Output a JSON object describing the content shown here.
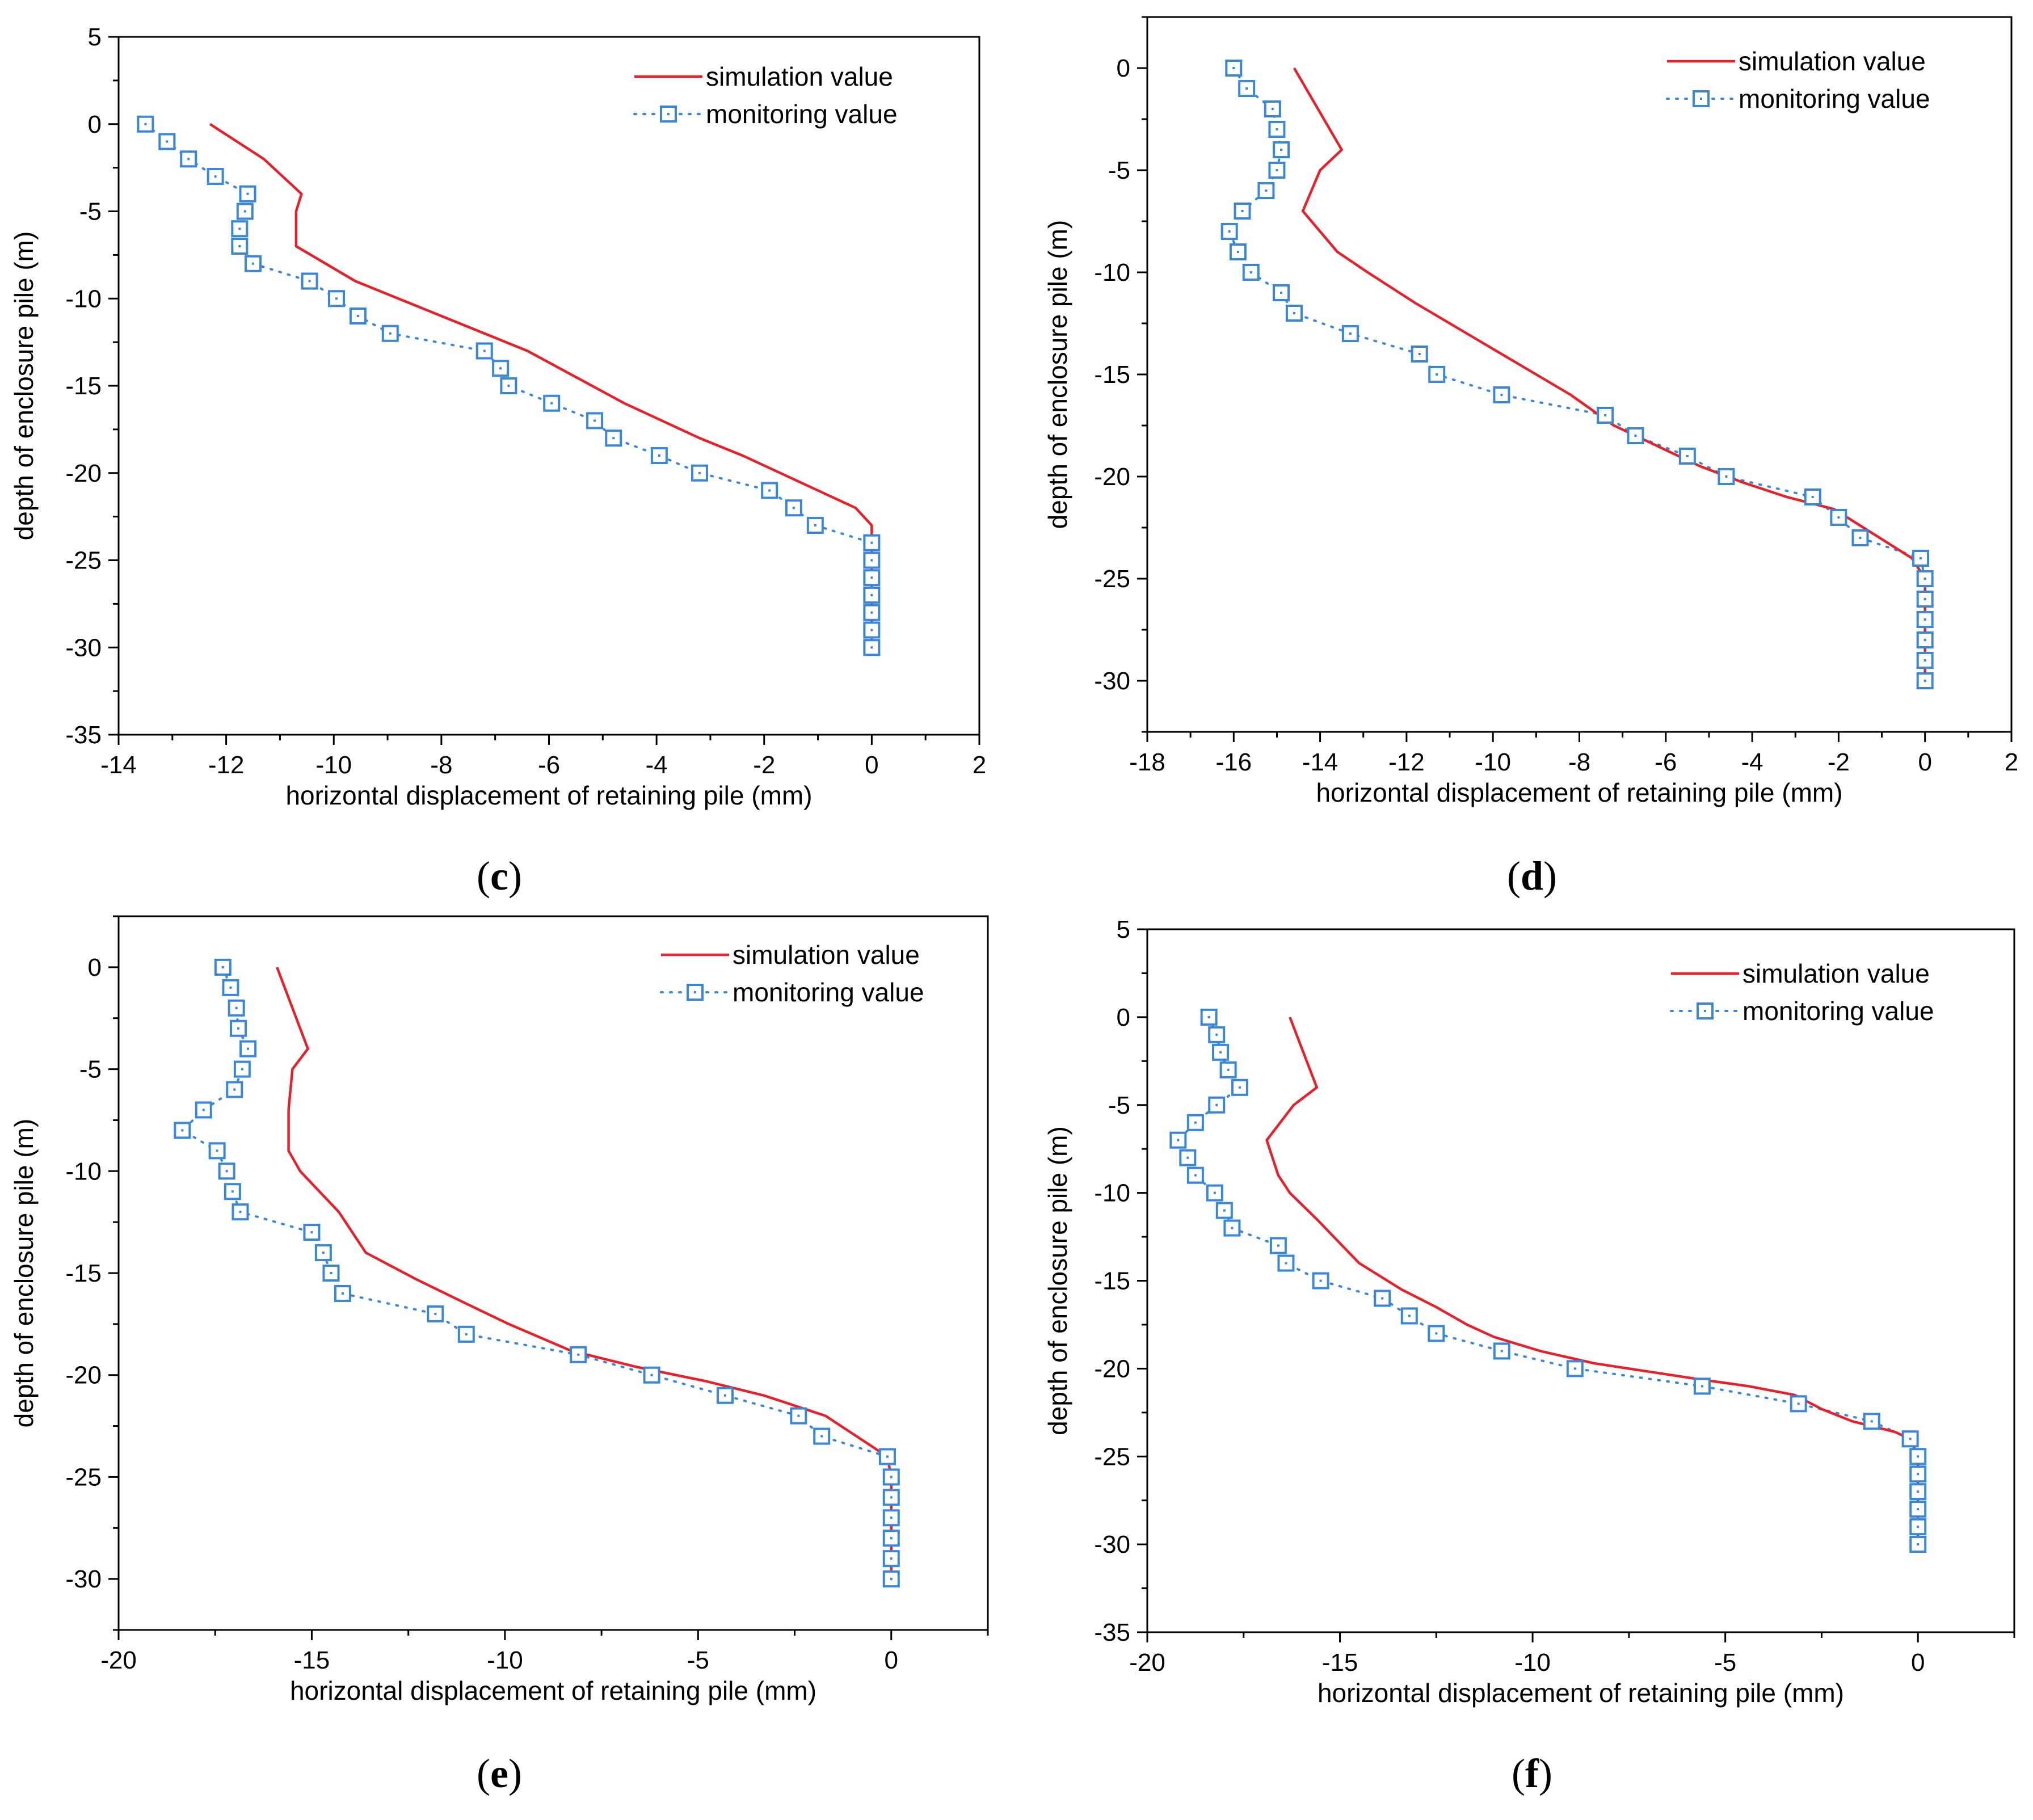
{
  "colors": {
    "simulation": "#e8202a",
    "monitoring": "#3a86d8",
    "axis": "#000000",
    "background": "#ffffff"
  },
  "chart_data": [
    {
      "id": "c",
      "type": "line",
      "caption": "c",
      "xlabel": "horizontal displacement of retaining pile (mm)",
      "ylabel": "depth of enclosure pile (m)",
      "xlim": [
        -14,
        2
      ],
      "ylim": [
        -35,
        5
      ],
      "xticks": [
        -14,
        -12,
        -10,
        -8,
        -6,
        -4,
        -2,
        0,
        2
      ],
      "yticks": [
        5,
        0,
        -5,
        -10,
        -15,
        -20,
        -25,
        -30,
        -35
      ],
      "legend": {
        "position": "top-right",
        "entries": [
          "simulation value",
          "monitoring value"
        ]
      },
      "series": [
        {
          "name": "simulation value",
          "style": "solid",
          "x": [
            -12.3,
            -11.3,
            -10.6,
            -10.7,
            -10.7,
            -10.7,
            -9.6,
            -8.8,
            -8.0,
            -7.2,
            -6.4,
            -5.8,
            -5.2,
            -4.6,
            -3.9,
            -3.2,
            -2.4,
            -1.7,
            -1.0,
            -0.3,
            0,
            0,
            0,
            0,
            0,
            0,
            0
          ],
          "y": [
            0,
            -2,
            -4,
            -5,
            -6,
            -7,
            -9,
            -10,
            -11,
            -12,
            -13,
            -14,
            -15,
            -16,
            -17,
            -18,
            -19,
            -20,
            -21,
            -22,
            -23,
            -24,
            -25,
            -26,
            -27,
            -28,
            -30
          ]
        },
        {
          "name": "monitoring value",
          "style": "dotted-square",
          "x": [
            -13.5,
            -13.1,
            -12.7,
            -12.2,
            -11.6,
            -11.65,
            -11.75,
            -11.75,
            -11.5,
            -10.45,
            -9.95,
            -9.55,
            -8.95,
            -7.2,
            -6.9,
            -6.75,
            -5.95,
            -5.15,
            -4.8,
            -3.95,
            -3.2,
            -1.9,
            -1.45,
            -1.05,
            0,
            0,
            0,
            0,
            0,
            0,
            0
          ],
          "y": [
            0,
            -1,
            -2,
            -3,
            -4,
            -5,
            -6,
            -7,
            -8,
            -9,
            -10,
            -11,
            -12,
            -13,
            -14,
            -15,
            -16,
            -17,
            -18,
            -19,
            -20,
            -21,
            -22,
            -23,
            -24,
            -25,
            -26,
            -27,
            -28,
            -29,
            -30
          ]
        }
      ]
    },
    {
      "id": "d",
      "type": "line",
      "caption": "d",
      "xlabel": "horizontal displacement of retaining pile (mm)",
      "ylabel": "depth of enclosure pile (m)",
      "xlim": [
        -18,
        2
      ],
      "ylim": [
        -32.5,
        2.5
      ],
      "xticks": [
        -18,
        -16,
        -14,
        -12,
        -10,
        -8,
        -6,
        -4,
        -2,
        0,
        2
      ],
      "yticks": [
        0,
        -5,
        -10,
        -15,
        -20,
        -25,
        -30
      ],
      "legend": {
        "position": "top-right",
        "entries": [
          "simulation value",
          "monitoring value"
        ]
      },
      "series": [
        {
          "name": "simulation value",
          "style": "solid",
          "x": [
            -14.6,
            -13.5,
            -14.0,
            -14.4,
            -13.6,
            -12.9,
            -11.8,
            -10.6,
            -9.4,
            -8.2,
            -7.2,
            -6.2,
            -5.2,
            -4.2,
            -3.2,
            -2.1,
            -1.2,
            -0.3,
            0,
            0,
            0
          ],
          "y": [
            0,
            -4,
            -5,
            -7,
            -9,
            -10,
            -11.5,
            -13,
            -14.5,
            -16,
            -17.5,
            -18.5,
            -19.5,
            -20.3,
            -21,
            -21.6,
            -22.8,
            -24,
            -25,
            -28,
            -30
          ]
        },
        {
          "name": "monitoring value",
          "style": "dotted-square",
          "x": [
            -16.0,
            -15.7,
            -15.1,
            -15.0,
            -14.9,
            -15.0,
            -15.25,
            -15.8,
            -16.1,
            -15.9,
            -15.6,
            -14.9,
            -14.6,
            -13.3,
            -11.7,
            -11.3,
            -9.8,
            -7.4,
            -6.7,
            -5.5,
            -4.6,
            -2.6,
            -2.0,
            -1.5,
            -0.1,
            0,
            0,
            0,
            0,
            0,
            0
          ],
          "y": [
            0,
            -1,
            -2,
            -3,
            -4,
            -5,
            -6,
            -7,
            -8,
            -9,
            -10,
            -11,
            -12,
            -13,
            -14,
            -15,
            -16,
            -17,
            -18,
            -19,
            -20,
            -21,
            -22,
            -23,
            -24,
            -25,
            -26,
            -27,
            -28,
            -29,
            -30
          ]
        }
      ]
    },
    {
      "id": "e",
      "type": "line",
      "caption": "e",
      "xlabel": "horizontal displacement of retaining pile (mm)",
      "ylabel": "depth of enclosure pile (m)",
      "xlim": [
        -20,
        2.5
      ],
      "ylim": [
        -32.5,
        2.5
      ],
      "xticks": [
        -20,
        -15,
        -10,
        -5,
        0
      ],
      "yticks": [
        0,
        -5,
        -10,
        -15,
        -20,
        -25,
        -30
      ],
      "legend": {
        "position": "top-right",
        "entries": [
          "simulation value",
          "monitoring value"
        ]
      },
      "series": [
        {
          "name": "simulation value",
          "style": "solid",
          "x": [
            -15.9,
            -15.1,
            -15.5,
            -15.6,
            -15.6,
            -15.3,
            -14.3,
            -13.6,
            -12.3,
            -11.0,
            -9.9,
            -8.3,
            -6.6,
            -4.8,
            -3.3,
            -1.7,
            -0.1,
            0,
            0,
            0
          ],
          "y": [
            0,
            -4,
            -5,
            -7,
            -9,
            -10,
            -12,
            -14,
            -15.3,
            -16.5,
            -17.5,
            -18.8,
            -19.6,
            -20.3,
            -21,
            -22,
            -24,
            -25,
            -28,
            -30
          ]
        },
        {
          "name": "monitoring value",
          "style": "dotted-square",
          "x": [
            -17.3,
            -17.1,
            -16.95,
            -16.9,
            -16.65,
            -16.8,
            -17.0,
            -17.8,
            -18.35,
            -17.45,
            -17.2,
            -17.05,
            -16.85,
            -15.0,
            -14.7,
            -14.5,
            -14.2,
            -11.8,
            -11.0,
            -8.1,
            -6.2,
            -4.3,
            -2.4,
            -1.8,
            -0.1,
            0,
            0,
            0,
            0,
            0,
            0
          ],
          "y": [
            0,
            -1,
            -2,
            -3,
            -4,
            -5,
            -6,
            -7,
            -8,
            -9,
            -10,
            -11,
            -12,
            -13,
            -14,
            -15,
            -16,
            -17,
            -18,
            -19,
            -20,
            -21,
            -22,
            -23,
            -24,
            -25,
            -26,
            -27,
            -28,
            -29,
            -30
          ]
        }
      ]
    },
    {
      "id": "f",
      "type": "line",
      "caption": "f",
      "xlabel": "horizontal displacement of retaining pile (mm)",
      "ylabel": "depth of enclosure pile (m)",
      "xlim": [
        -20,
        2.5
      ],
      "ylim": [
        -35,
        5
      ],
      "xticks": [
        -20,
        -15,
        -10,
        -5,
        0
      ],
      "yticks": [
        5,
        0,
        -5,
        -10,
        -15,
        -20,
        -25,
        -30,
        -35
      ],
      "legend": {
        "position": "top-right",
        "entries": [
          "simulation value",
          "monitoring value"
        ]
      },
      "series": [
        {
          "name": "simulation value",
          "style": "solid",
          "x": [
            -16.3,
            -15.6,
            -16.2,
            -16.9,
            -16.6,
            -16.3,
            -15.6,
            -14.5,
            -13.4,
            -12.5,
            -11.7,
            -11.0,
            -9.8,
            -8.4,
            -6.9,
            -5.7,
            -4.4,
            -3.2,
            -2.5,
            -1.7,
            -0.6,
            -0.2,
            0,
            0,
            0
          ],
          "y": [
            0,
            -4,
            -5,
            -7,
            -9,
            -10,
            -11.5,
            -14,
            -15.5,
            -16.5,
            -17.5,
            -18.2,
            -19,
            -19.7,
            -20.2,
            -20.6,
            -21,
            -21.5,
            -22.3,
            -23,
            -23.6,
            -24,
            -25,
            -28,
            -30
          ]
        },
        {
          "name": "monitoring value",
          "style": "dotted-square",
          "x": [
            -18.4,
            -18.2,
            -18.1,
            -17.9,
            -17.6,
            -18.2,
            -18.75,
            -19.2,
            -18.95,
            -18.75,
            -18.25,
            -18.0,
            -17.8,
            -16.6,
            -16.4,
            -15.5,
            -13.9,
            -13.2,
            -12.5,
            -10.8,
            -8.9,
            -5.6,
            -3.1,
            -1.2,
            -0.2,
            0,
            0,
            0,
            0,
            0,
            0
          ],
          "y": [
            0,
            -1,
            -2,
            -3,
            -4,
            -5,
            -6,
            -7,
            -8,
            -9,
            -10,
            -11,
            -12,
            -13,
            -14,
            -15,
            -16,
            -17,
            -18,
            -19,
            -20,
            -21,
            -22,
            -23,
            -24,
            -25,
            -26,
            -27,
            -28,
            -29,
            -30
          ]
        }
      ]
    }
  ]
}
